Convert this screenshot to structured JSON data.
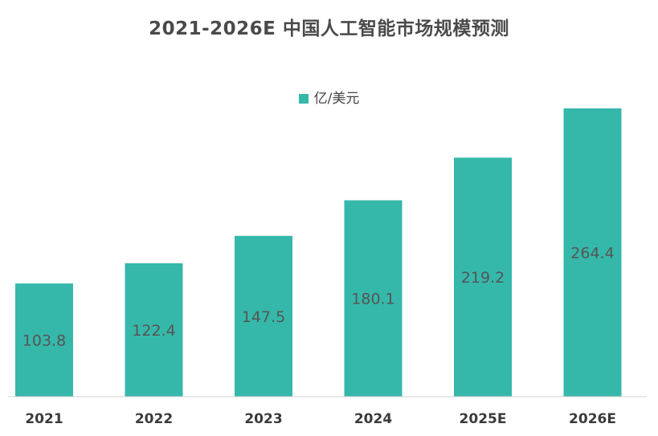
{
  "chart_data": {
    "type": "bar",
    "title": "2021-2026E 中国人工智能市场规模预测",
    "categories": [
      "2021",
      "2022",
      "2023",
      "2024",
      "2025E",
      "2026E"
    ],
    "series": [
      {
        "name": "亿/美元",
        "values": [
          103.8,
          122.4,
          147.5,
          180.1,
          219.2,
          264.4
        ],
        "color": "#35b8aa"
      }
    ],
    "legend_position": "top-center",
    "grid": false,
    "ylim": [
      0,
      264.4
    ]
  }
}
